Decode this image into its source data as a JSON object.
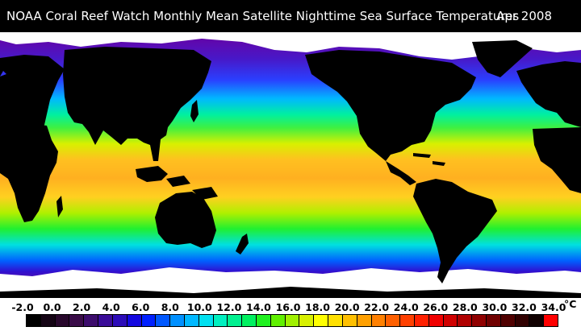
{
  "title": "NOAA Coral Reef Watch Monthly Mean Satellite Nighttime Sea Surface Temperatures",
  "date": "Apr 2008",
  "legend": {
    "ticks": [
      "-2.0",
      "0.0",
      "2.0",
      "4.0",
      "6.0",
      "8.0",
      "10.0",
      "12.0",
      "14.0",
      "16.0",
      "18.0",
      "20.0",
      "22.0",
      "24.0",
      "26.0",
      "28.0",
      "30.0",
      "32.0",
      "34.0"
    ],
    "unit": "°C",
    "range": [
      -2.0,
      34.0
    ],
    "colors": [
      "#000000",
      "#140414",
      "#28082c",
      "#3a0c48",
      "#3c0c6c",
      "#3a0c98",
      "#2c0cb8",
      "#1408e0",
      "#0020ff",
      "#0058ff",
      "#0090ff",
      "#00b8ff",
      "#00e0f0",
      "#00f0c0",
      "#00f090",
      "#00f060",
      "#20f020",
      "#60f000",
      "#a0f000",
      "#d8f000",
      "#ffff00",
      "#ffe000",
      "#ffc000",
      "#ffa000",
      "#ff8000",
      "#ff6000",
      "#ff4000",
      "#ff2000",
      "#f00000",
      "#d00000",
      "#b00000",
      "#900000",
      "#700000",
      "#500000",
      "#300000",
      "#100000",
      "#ff0000"
    ]
  },
  "map": {
    "land_color": "#000000",
    "ice_color": "#ffffff",
    "projection": "equirectangular"
  }
}
